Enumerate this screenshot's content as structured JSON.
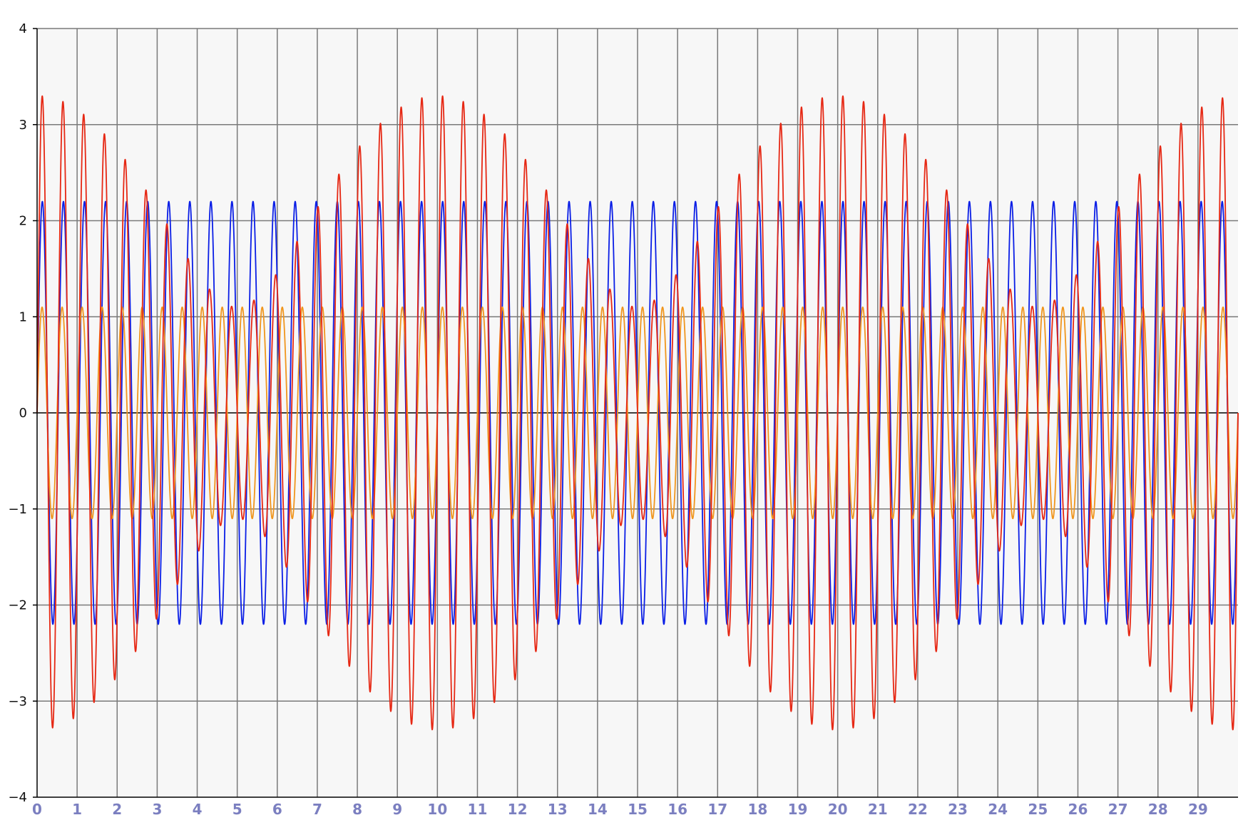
{
  "chart_data": {
    "type": "line",
    "title": "",
    "xlabel": "",
    "ylabel": "",
    "xlim": [
      0,
      30
    ],
    "ylim": [
      -4,
      4
    ],
    "grid": true,
    "legend": "none",
    "x_ticks": [
      "0",
      "1",
      "2",
      "3",
      "4",
      "5",
      "6",
      "7",
      "8",
      "9",
      "10",
      "11",
      "12",
      "13",
      "14",
      "15",
      "16",
      "17",
      "18",
      "19",
      "20",
      "21",
      "22",
      "23",
      "24",
      "25",
      "26",
      "27",
      "28",
      "29"
    ],
    "y_ticks": [
      "4",
      "3",
      "2",
      "1",
      "0",
      "−1",
      "−2",
      "−3",
      "−4"
    ],
    "x_tick_color": "#7b7fc0",
    "plot_background": "#f7f7f7",
    "series": [
      {
        "color": "#0a1ee6",
        "function": "2.2*sin(2*pi*1.9*x)",
        "amplitude": 2.2,
        "frequency": 1.9
      },
      {
        "color": "#f0961e",
        "function": "1.1*sin(2*pi*2.0*x)",
        "amplitude": 1.1,
        "frequency": 2.0
      },
      {
        "color": "#e62814",
        "function": "2.2*sin(2*pi*1.9*x)+1.1*sin(2*pi*2.0*x)",
        "components": [
          {
            "amplitude": 2.2,
            "frequency": 1.9
          },
          {
            "amplitude": 1.1,
            "frequency": 2.0
          }
        ]
      }
    ]
  }
}
